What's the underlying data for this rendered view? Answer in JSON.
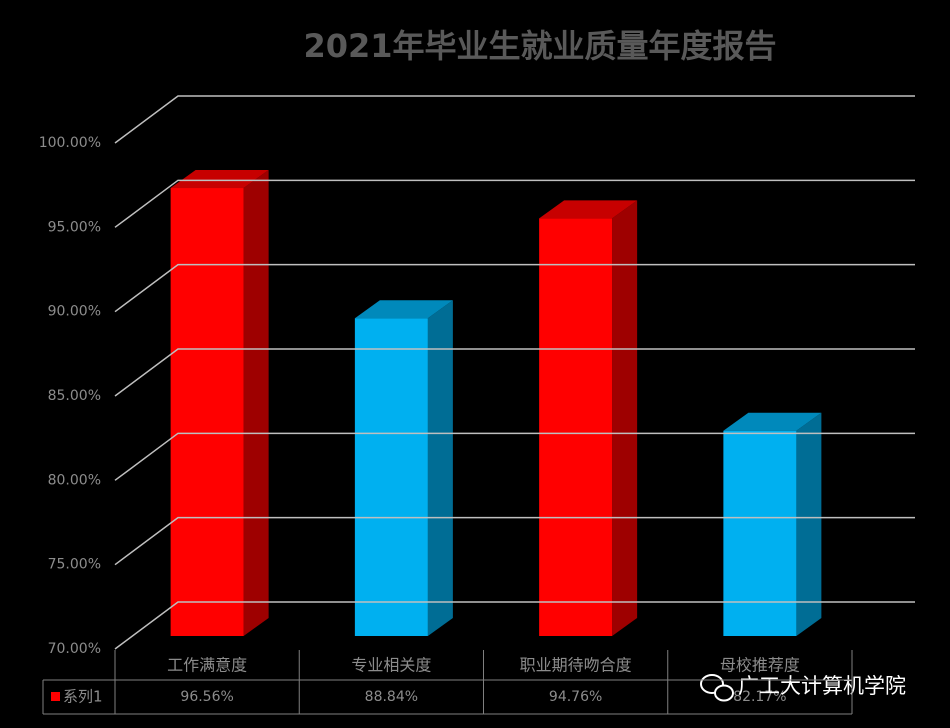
{
  "chart_data": {
    "type": "bar3d",
    "title": "2021年毕业生就业质量年度报告",
    "categories": [
      "工作满意度",
      "专业相关度",
      "职业期待吻合度",
      "母校推荐度"
    ],
    "series": [
      {
        "name": "系列1",
        "color": "#ff0000",
        "colors": [
          "#ff0000",
          "#00b0f0",
          "#ff0000",
          "#00b0f0"
        ],
        "values": [
          96.56,
          88.84,
          94.76,
          82.17
        ],
        "value_labels": [
          "96.56%",
          "88.84%",
          "94.76%",
          "82.17%"
        ]
      }
    ],
    "ylim": [
      70,
      100
    ],
    "yticks": [
      {
        "value": 70,
        "label": "70.00%"
      },
      {
        "value": 75,
        "label": "75.00%"
      },
      {
        "value": 80,
        "label": "80.00%"
      },
      {
        "value": 85,
        "label": "85.00%"
      },
      {
        "value": 90,
        "label": "90.00%"
      },
      {
        "value": 95,
        "label": "95.00%"
      },
      {
        "value": 100,
        "label": "100.00%"
      }
    ],
    "grid": true,
    "data_table": true
  },
  "watermark": "广工大计算机学院"
}
